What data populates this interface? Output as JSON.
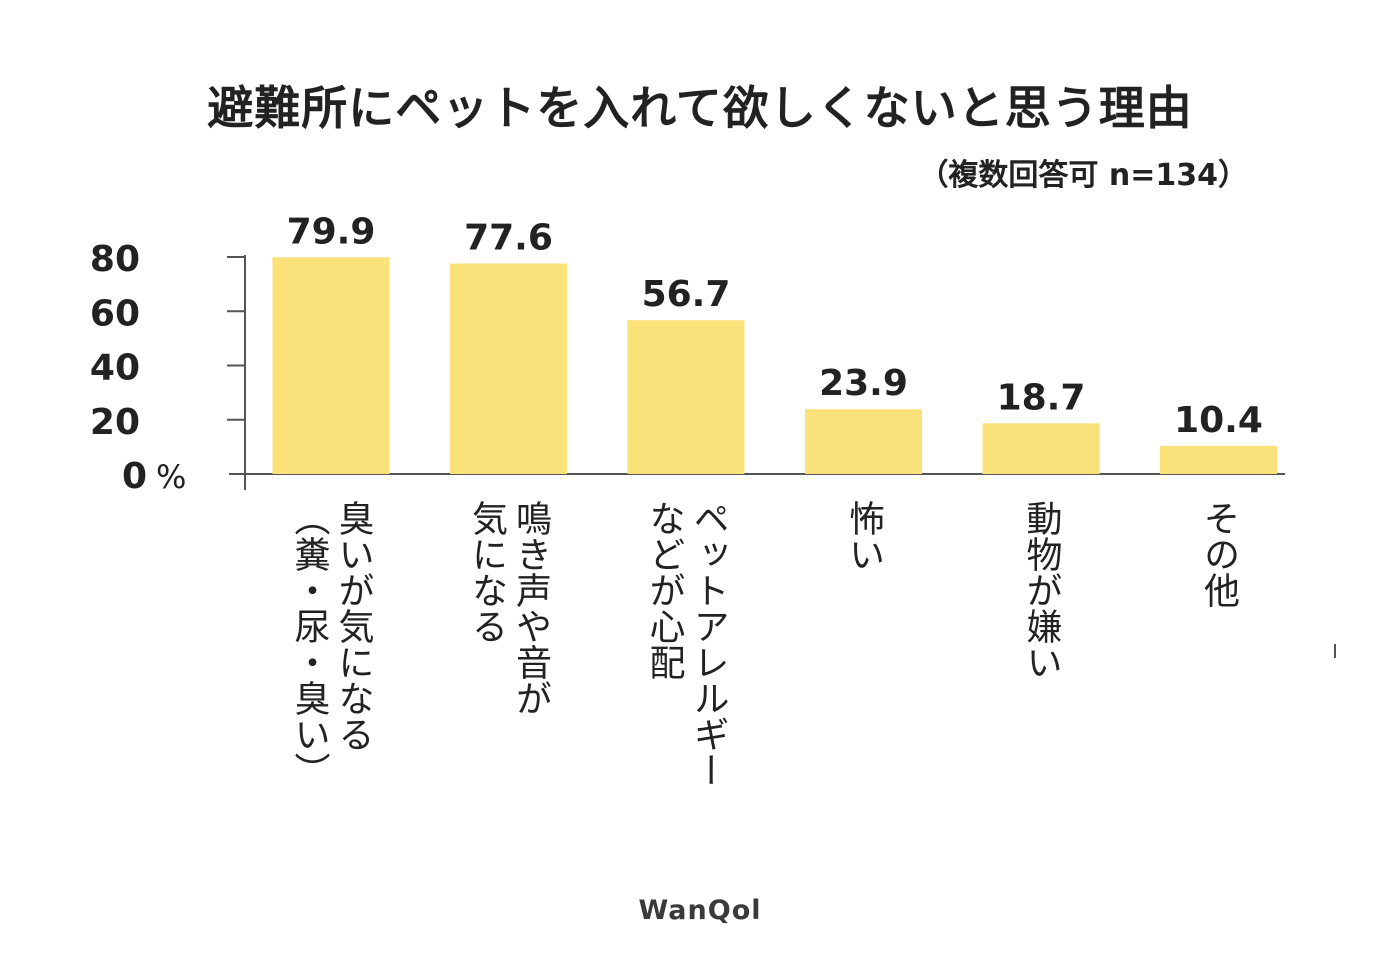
{
  "chart_data": {
    "type": "bar",
    "title": "避難所にペットを入れて欲しくないと思う理由",
    "subtitle": "（複数回答可 n=134）",
    "categories": [
      "臭いが気になる（糞・尿・臭い）",
      "鳴き声や音が気になる",
      "ペットアレルギーなどが心配",
      "怖い",
      "動物が嫌い",
      "その他"
    ],
    "category_label_columns": [
      [
        "臭いが気になる",
        "（糞・尿・臭い）"
      ],
      [
        "鳴き声や音が",
        "気になる"
      ],
      [
        "ペットアレルギー",
        "などが心配"
      ],
      [
        "怖い"
      ],
      [
        "動物が嫌い"
      ],
      [
        "その他"
      ]
    ],
    "values": [
      79.9,
      77.6,
      56.7,
      23.9,
      18.7,
      10.4
    ],
    "data_labels": [
      "79.9",
      "77.6",
      "56.7",
      "23.9",
      "18.7",
      "10.4"
    ],
    "yticks": [
      "0",
      "20",
      "40",
      "60",
      "80"
    ],
    "yunit": "%",
    "ylim": [
      0,
      80
    ],
    "xlabel": "",
    "ylabel": "",
    "bar_color": "#fbe17a",
    "axis_color": "#555555",
    "grid": false,
    "legend": "none"
  },
  "brand": {
    "logo_text": "WanQol"
  }
}
